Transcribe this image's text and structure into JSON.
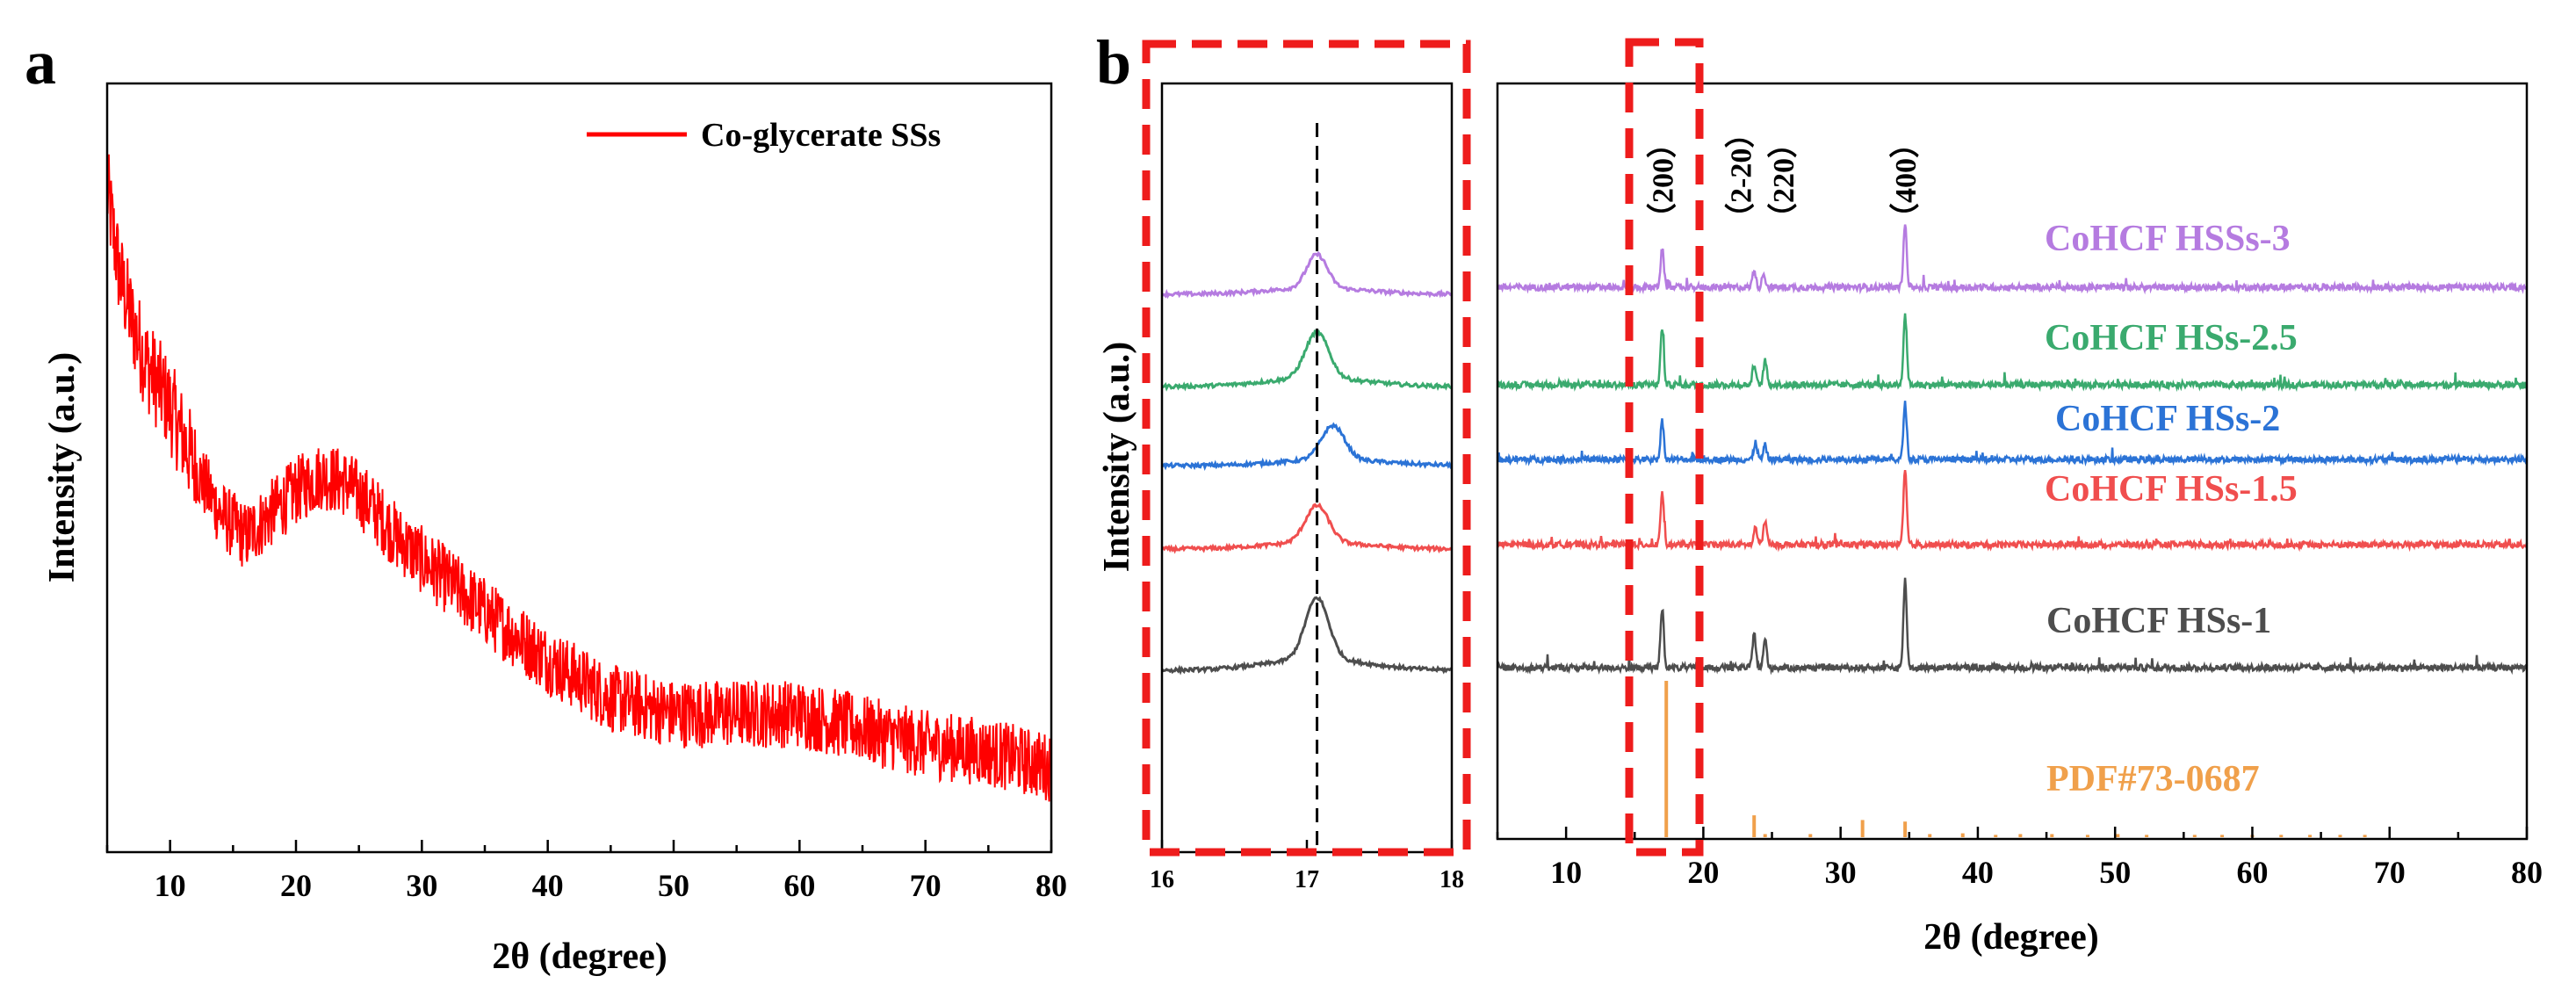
{
  "chart_data": [
    {
      "type": "line",
      "panel_letter": "a",
      "xlabel": "2θ (degree)",
      "ylabel": "Intensity (a.u.)",
      "xlim": [
        5,
        80
      ],
      "x_ticks": [
        "10",
        "20",
        "30",
        "40",
        "50",
        "60",
        "70",
        "80"
      ],
      "legend_position": "top-right",
      "series": [
        {
          "name": "Co-glycerate SSs",
          "color": "#ff0000",
          "trend_x": [
            5,
            6,
            7,
            8,
            10,
            12,
            14,
            16,
            18,
            20,
            22,
            24,
            26,
            28,
            30,
            33,
            36,
            40,
            45,
            50,
            55,
            60,
            65,
            70,
            75,
            80
          ],
          "trend_y": [
            0.86,
            0.75,
            0.69,
            0.64,
            0.58,
            0.5,
            0.44,
            0.41,
            0.44,
            0.47,
            0.49,
            0.48,
            0.45,
            0.41,
            0.38,
            0.34,
            0.3,
            0.25,
            0.2,
            0.18,
            0.18,
            0.18,
            0.16,
            0.14,
            0.13,
            0.11
          ],
          "noise_amplitude": 0.045
        }
      ]
    },
    {
      "type": "line",
      "panel_letter": "b",
      "xlabel": "2θ (degree)",
      "ylabel": "Intensity (a.u.)",
      "inset": {
        "xlim": [
          16,
          18
        ],
        "x_ticks": [
          "16",
          "17",
          "18"
        ],
        "reference_line_x": 17.07,
        "peaks": [
          {
            "color": "#b57be0",
            "center": 17.07,
            "width": 0.07,
            "height": 0.55
          },
          {
            "color": "#3aaa6e",
            "center": 17.07,
            "width": 0.08,
            "height": 0.75
          },
          {
            "color": "#2b73d6",
            "center": 17.18,
            "width": 0.08,
            "height": 0.55
          },
          {
            "color": "#f04e4e",
            "center": 17.07,
            "width": 0.08,
            "height": 0.6
          },
          {
            "color": "#4d4d4d",
            "center": 17.07,
            "width": 0.08,
            "height": 1.0
          }
        ]
      },
      "xlim": [
        5,
        80
      ],
      "x_ticks": [
        "10",
        "20",
        "30",
        "40",
        "50",
        "60",
        "70",
        "80"
      ],
      "peak_labels": [
        {
          "text": "（200）",
          "x": 17.0
        },
        {
          "text": "（2-20）",
          "x": 22.7
        },
        {
          "text": "（220）",
          "x": 25.8
        },
        {
          "text": "（400）",
          "x": 34.7
        }
      ],
      "series": [
        {
          "name": "CoHCF HSSs-3",
          "color": "#b57be0",
          "peaks": [
            {
              "x": 17.0,
              "h": 0.55
            },
            {
              "x": 23.7,
              "h": 0.25
            },
            {
              "x": 24.4,
              "h": 0.2
            },
            {
              "x": 34.7,
              "h": 0.9
            }
          ]
        },
        {
          "name": "CoHCF HSs-2.5",
          "color": "#3aaa6e",
          "peaks": [
            {
              "x": 17.0,
              "h": 0.8
            },
            {
              "x": 23.7,
              "h": 0.3
            },
            {
              "x": 24.5,
              "h": 0.35
            },
            {
              "x": 34.7,
              "h": 1.0
            }
          ]
        },
        {
          "name": "CoHCF HSs-2",
          "color": "#2b73d6",
          "peaks": [
            {
              "x": 17.0,
              "h": 0.55
            },
            {
              "x": 23.8,
              "h": 0.25
            },
            {
              "x": 24.5,
              "h": 0.2
            },
            {
              "x": 34.7,
              "h": 0.8
            }
          ]
        },
        {
          "name": "CoHCF HSs-1.5",
          "color": "#f04e4e",
          "peaks": [
            {
              "x": 17.0,
              "h": 0.75
            },
            {
              "x": 23.8,
              "h": 0.25
            },
            {
              "x": 24.5,
              "h": 0.35
            },
            {
              "x": 34.7,
              "h": 1.05
            }
          ]
        },
        {
          "name": "CoHCF HSs-1",
          "color": "#4d4d4d",
          "peaks": [
            {
              "x": 17.0,
              "h": 0.85
            },
            {
              "x": 23.7,
              "h": 0.5
            },
            {
              "x": 24.5,
              "h": 0.4
            },
            {
              "x": 34.7,
              "h": 1.25
            }
          ]
        }
      ],
      "reference": {
        "name": "PDF#73-0687",
        "color": "#f0a04b",
        "sticks": [
          {
            "x": 17.3,
            "h": 1.0
          },
          {
            "x": 23.7,
            "h": 0.14
          },
          {
            "x": 31.6,
            "h": 0.11
          },
          {
            "x": 34.7,
            "h": 0.1
          },
          {
            "x": 24.5,
            "h": 0.02
          },
          {
            "x": 27.8,
            "h": 0.02
          },
          {
            "x": 36.5,
            "h": 0.02
          },
          {
            "x": 38.9,
            "h": 0.025
          },
          {
            "x": 41.3,
            "h": 0.015
          },
          {
            "x": 43.1,
            "h": 0.02
          },
          {
            "x": 45.4,
            "h": 0.02
          },
          {
            "x": 48.0,
            "h": 0.015
          },
          {
            "x": 50.2,
            "h": 0.02
          },
          {
            "x": 52.3,
            "h": 0.015
          },
          {
            "x": 55.8,
            "h": 0.015
          },
          {
            "x": 57.8,
            "h": 0.015
          },
          {
            "x": 60.0,
            "h": 0.015
          },
          {
            "x": 62.1,
            "h": 0.015
          },
          {
            "x": 64.2,
            "h": 0.015
          },
          {
            "x": 66.4,
            "h": 0.015
          },
          {
            "x": 68.2,
            "h": 0.015
          }
        ]
      }
    }
  ]
}
